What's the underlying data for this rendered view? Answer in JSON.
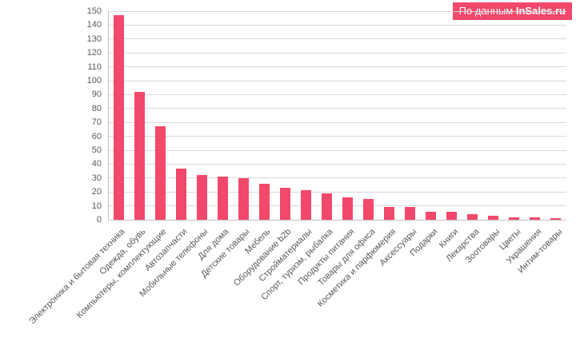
{
  "watermark": {
    "prefix": "По данным",
    "brand": "InSales.ru"
  },
  "chart_data": {
    "type": "bar",
    "title": "",
    "xlabel": "",
    "ylabel": "",
    "categories": [
      "Электроника и бытовая техника",
      "Одежда, обувь",
      "Компьютеры, комплектующие",
      "Автозапчасти",
      "Мобильные телефоны",
      "Для дома",
      "Детские товары",
      "Мебель",
      "Оборудование b2b",
      "Стройматериалы",
      "Спорт, туризм, рыбалка",
      "Продукты питания",
      "Товары для офиса",
      "Косметика и парфюмерия",
      "Аксессуары",
      "Подарки",
      "Книги",
      "Лекарства",
      "Зоотовары",
      "Цветы",
      "Украшения",
      "Интим-товары"
    ],
    "values": [
      147,
      92,
      67,
      37,
      32,
      31,
      30,
      26,
      23,
      21,
      19,
      16,
      15,
      9,
      9,
      6,
      6,
      4,
      3,
      2,
      2,
      1
    ],
    "ylim": [
      0,
      150
    ],
    "yticks": [
      0,
      10,
      20,
      30,
      40,
      50,
      60,
      70,
      80,
      90,
      100,
      110,
      120,
      130,
      140,
      150
    ],
    "grid": true,
    "legend": "none",
    "bar_color": "#f2486b",
    "axis_text_color": "#595959",
    "grid_color": "#d9d9d9"
  }
}
